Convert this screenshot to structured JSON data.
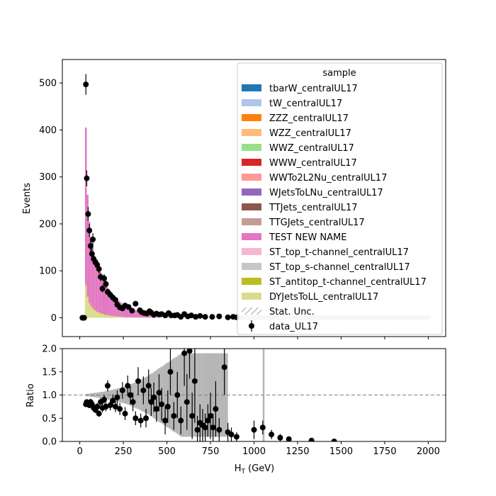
{
  "chart_data": [
    {
      "type": "bar",
      "panel": "main",
      "stacked": true,
      "xlabel": "",
      "ylabel": "Events",
      "xlim": [
        -100,
        2100
      ],
      "ylim": [
        -40,
        550
      ],
      "xticks": [
        0,
        250,
        500,
        750,
        1000,
        1250,
        1500,
        1750,
        2000
      ],
      "xtick_labels_shown": false,
      "yticks": [
        0,
        100,
        200,
        300,
        400,
        500
      ],
      "bin_width": 10,
      "mc_region": [
        30,
        2000
      ],
      "mc_stack_totals": {
        "x": [
          35,
          45,
          55,
          65,
          75,
          85,
          95,
          105,
          115,
          125,
          135,
          145,
          155,
          165,
          175,
          185,
          195,
          205,
          215,
          225,
          235,
          245,
          255,
          265,
          275,
          285,
          295,
          305,
          315,
          325,
          335,
          345,
          355,
          365,
          375,
          385,
          395,
          405,
          425,
          445,
          465,
          485,
          505,
          525,
          545,
          565,
          585,
          605,
          625,
          650,
          700,
          750,
          800,
          850
        ],
        "values": [
          405,
          262,
          205,
          172,
          150,
          132,
          120,
          110,
          100,
          92,
          85,
          75,
          70,
          62,
          57,
          52,
          47,
          43,
          40,
          36,
          33,
          30,
          28,
          26,
          24,
          22,
          20,
          18,
          17,
          16,
          15,
          14,
          13,
          12,
          11,
          10,
          10,
          9,
          8,
          7,
          6,
          6,
          5,
          5,
          4,
          4,
          3,
          3,
          3,
          2,
          2,
          1,
          1,
          1
        ]
      },
      "components": {
        "DYJetsToLL_centralUL17_fraction": [
          0.17,
          0.17,
          0.15,
          0.14,
          0.13,
          0.12,
          0.11,
          0.1,
          0.1,
          0.09,
          0.09,
          0.08,
          0.08,
          0.08,
          0.07,
          0.07,
          0.07,
          0.06,
          0.06,
          0.06,
          0.06,
          0.05,
          0.05,
          0.05,
          0.05,
          0.05,
          0.04,
          0.04,
          0.04,
          0.04,
          0.04,
          0.04,
          0.04,
          0.04,
          0.04,
          0.04,
          0.04,
          0.04,
          0.04,
          0.04,
          0.04,
          0.04,
          0.04,
          0.04,
          0.04,
          0.04,
          0.04,
          0.04,
          0.04,
          0.04,
          0.04,
          0.04,
          0.04,
          0.04
        ],
        "ST_antitop_t-channel_centralUL17_fraction": 0.01,
        "TEST NEW NAME_dominant": true
      },
      "data_points": {
        "name": "data_UL17",
        "x": [
          15,
          20,
          25,
          35,
          40,
          48,
          55,
          62,
          70,
          75,
          80,
          90,
          100,
          110,
          120,
          130,
          140,
          150,
          160,
          175,
          190,
          205,
          215,
          230,
          245,
          260,
          280,
          300,
          320,
          345,
          355,
          370,
          385,
          400,
          410,
          425,
          440,
          455,
          470,
          490,
          510,
          525,
          545,
          560,
          580,
          600,
          620,
          640,
          665,
          690,
          720,
          760,
          800,
          850,
          880,
          900
        ],
        "y": [
          0,
          0,
          0,
          497,
          297,
          221,
          186,
          153,
          136,
          167,
          125,
          118,
          113,
          104,
          87,
          62,
          84,
          72,
          55,
          49,
          43,
          38,
          28,
          22,
          20,
          26,
          23,
          15,
          30,
          16,
          12,
          10,
          9,
          14,
          11,
          6,
          9,
          7,
          8,
          5,
          10,
          5,
          5,
          6,
          2,
          8,
          3,
          5,
          2,
          4,
          2,
          2,
          3,
          1,
          2,
          1
        ],
        "yerr": [
          0,
          0,
          0,
          22,
          17,
          15,
          14,
          12,
          12,
          13,
          11,
          11,
          11,
          10,
          9,
          8,
          9,
          8,
          7,
          7,
          7,
          6,
          5,
          5,
          4,
          5,
          5,
          4,
          5,
          4,
          3,
          3,
          3,
          4,
          3,
          2,
          3,
          3,
          3,
          2,
          3,
          2,
          2,
          2,
          1,
          3,
          2,
          2,
          1,
          2,
          1,
          1,
          2,
          1,
          1,
          1
        ]
      },
      "legend": {
        "title": "sample",
        "placement": "upper right",
        "entries": [
          {
            "name": "tbarW_centralUL17",
            "color": "#1f77b4",
            "kind": "patch"
          },
          {
            "name": "tW_centralUL17",
            "color": "#aec7e8",
            "kind": "patch"
          },
          {
            "name": "ZZZ_centralUL17",
            "color": "#ff7f0e",
            "kind": "patch"
          },
          {
            "name": "WZZ_centralUL17",
            "color": "#ffbb78",
            "kind": "patch"
          },
          {
            "name": "WWZ_centralUL17",
            "color": "#98df8a",
            "kind": "patch"
          },
          {
            "name": "WWW_centralUL17",
            "color": "#d62728",
            "kind": "patch"
          },
          {
            "name": "WWTo2L2Nu_centralUL17",
            "color": "#ff9896",
            "kind": "patch"
          },
          {
            "name": "WJetsToLNu_centralUL17",
            "color": "#9467bd",
            "kind": "patch"
          },
          {
            "name": "TTJets_centralUL17",
            "color": "#8c564b",
            "kind": "patch"
          },
          {
            "name": "TTGJets_centralUL17",
            "color": "#c49c94",
            "kind": "patch"
          },
          {
            "name": "TEST NEW NAME",
            "color": "#e377c2",
            "kind": "patch"
          },
          {
            "name": "ST_top_t-channel_centralUL17",
            "color": "#f7b6d2",
            "kind": "patch"
          },
          {
            "name": "ST_top_s-channel_centralUL17",
            "color": "#c7c7c7",
            "kind": "patch"
          },
          {
            "name": "ST_antitop_t-channel_centralUL17",
            "color": "#bcbd22",
            "kind": "patch"
          },
          {
            "name": "DYJetsToLL_centralUL17",
            "color": "#dbdb8d",
            "kind": "patch"
          },
          {
            "name": "Stat. Unc.",
            "color": "#888888",
            "kind": "hatch"
          },
          {
            "name": "data_UL17",
            "color": "#000000",
            "kind": "errorbar"
          }
        ]
      }
    },
    {
      "type": "scatter",
      "panel": "ratio",
      "xlabel": "H$_T$ (GeV)",
      "xlabel_display": {
        "base": "H",
        "sub": "T",
        "rest": " (GeV)"
      },
      "ylabel": "Ratio",
      "xlim": [
        -100,
        2100
      ],
      "ylim": [
        0,
        2
      ],
      "xticks": [
        0,
        250,
        500,
        750,
        1000,
        1250,
        1500,
        1750,
        2000
      ],
      "yticks": [
        0.0,
        0.5,
        1.0,
        1.5,
        2.0
      ],
      "ytick_labels": [
        "0.0",
        "0.5",
        "1.0",
        "1.5",
        "2.0"
      ],
      "reference_line": 1.0,
      "unc_band": {
        "x": [
          35,
          45,
          55,
          65,
          75,
          85,
          95,
          105,
          115,
          125,
          135,
          145,
          155,
          165,
          175,
          185,
          195,
          205,
          215,
          225,
          235,
          245,
          255,
          265,
          275,
          285,
          295,
          305,
          315,
          325,
          335,
          345,
          355,
          365,
          375,
          385,
          395,
          405,
          415,
          425,
          435,
          445,
          455,
          465,
          475,
          485,
          495,
          505,
          515,
          525,
          535,
          545,
          555,
          565,
          575,
          585,
          595,
          605,
          615,
          625,
          635,
          645,
          655,
          665,
          675,
          685,
          695,
          705,
          715,
          725,
          735,
          745,
          755,
          765,
          775,
          785,
          795,
          805,
          815,
          825,
          835,
          845,
          1055
        ],
        "half_width": [
          0.02,
          0.03,
          0.03,
          0.04,
          0.04,
          0.05,
          0.05,
          0.06,
          0.06,
          0.07,
          0.07,
          0.08,
          0.09,
          0.1,
          0.1,
          0.11,
          0.12,
          0.13,
          0.14,
          0.15,
          0.16,
          0.17,
          0.18,
          0.19,
          0.2,
          0.22,
          0.24,
          0.25,
          0.27,
          0.29,
          0.3,
          0.32,
          0.34,
          0.36,
          0.38,
          0.4,
          0.42,
          0.45,
          0.47,
          0.5,
          0.52,
          0.55,
          0.58,
          0.6,
          0.62,
          0.65,
          0.68,
          0.7,
          0.72,
          0.75,
          0.78,
          0.8,
          0.82,
          0.85,
          0.88,
          0.9,
          0.9,
          0.9,
          0.9,
          0.9,
          0.9,
          0.9,
          0.9,
          0.9,
          0.9,
          0.9,
          0.9,
          0.9,
          0.9,
          0.9,
          0.9,
          0.9,
          0.9,
          0.9,
          0.9,
          0.9,
          0.9,
          0.9,
          0.9,
          0.9,
          0.9,
          0.9,
          1.0
        ]
      },
      "points": {
        "x": [
          35,
          40,
          48,
          55,
          62,
          70,
          80,
          90,
          100,
          110,
          120,
          130,
          140,
          150,
          160,
          175,
          190,
          205,
          215,
          230,
          245,
          260,
          275,
          290,
          305,
          320,
          335,
          350,
          365,
          380,
          395,
          410,
          425,
          440,
          455,
          470,
          490,
          505,
          520,
          540,
          560,
          580,
          600,
          615,
          630,
          645,
          660,
          675,
          690,
          705,
          720,
          735,
          750,
          765,
          780,
          800,
          830,
          850,
          870,
          900,
          1000,
          1050,
          1100,
          1150,
          1200,
          1330,
          1460
        ],
        "y": [
          0.8,
          0.85,
          0.82,
          0.78,
          0.85,
          0.8,
          0.72,
          0.68,
          0.75,
          0.6,
          0.85,
          0.72,
          0.9,
          0.75,
          1.2,
          0.78,
          0.88,
          0.75,
          0.95,
          0.7,
          1.1,
          0.6,
          1.2,
          1.0,
          0.85,
          0.5,
          1.3,
          0.45,
          1.1,
          0.5,
          1.2,
          0.85,
          0.95,
          0.7,
          1.05,
          0.8,
          0.45,
          0.75,
          1.5,
          0.55,
          1.0,
          0.45,
          1.9,
          0.85,
          1.95,
          0.55,
          1.3,
          0.25,
          0.4,
          0.35,
          0.3,
          0.45,
          0.55,
          0.3,
          0.7,
          0.25,
          1.6,
          0.2,
          0.15,
          0.1,
          0.25,
          0.3,
          0.15,
          0.08,
          0.05,
          0.02,
          0.0
        ],
        "yerr": [
          0.04,
          0.05,
          0.06,
          0.06,
          0.07,
          0.07,
          0.07,
          0.07,
          0.08,
          0.07,
          0.09,
          0.09,
          0.1,
          0.1,
          0.12,
          0.11,
          0.13,
          0.12,
          0.15,
          0.13,
          0.18,
          0.14,
          0.22,
          0.2,
          0.2,
          0.15,
          0.3,
          0.15,
          0.3,
          0.2,
          0.35,
          0.3,
          0.32,
          0.28,
          0.4,
          0.35,
          0.3,
          0.35,
          0.5,
          0.3,
          0.5,
          0.3,
          0.7,
          0.6,
          0.6,
          0.5,
          0.9,
          0.3,
          0.4,
          0.35,
          0.3,
          0.35,
          0.5,
          0.3,
          0.6,
          0.25,
          0.6,
          0.2,
          0.15,
          0.1,
          0.2,
          0.15,
          0.1,
          0.08,
          0.05,
          0.03,
          0.02
        ]
      }
    }
  ]
}
